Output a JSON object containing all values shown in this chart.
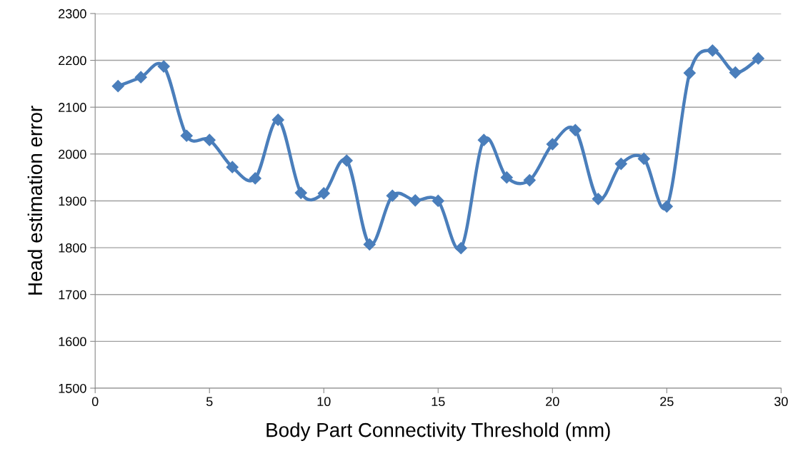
{
  "chart_data": {
    "type": "line",
    "xlabel": "Body Part Connectivity Threshold (mm)",
    "ylabel": "Head estimation error",
    "x": [
      1,
      2,
      3,
      4,
      5,
      6,
      7,
      8,
      9,
      10,
      11,
      12,
      13,
      14,
      15,
      16,
      17,
      18,
      19,
      20,
      21,
      22,
      23,
      24,
      25,
      26,
      27,
      28,
      29
    ],
    "series": [
      {
        "color": "#4a7ebb",
        "values": [
          2145,
          2164,
          2187,
          2039,
          2030,
          1972,
          1948,
          2073,
          1917,
          1916,
          1986,
          1807,
          1911,
          1901,
          1900,
          1799,
          2030,
          1950,
          1944,
          2021,
          2051,
          1904,
          1979,
          1990,
          1888,
          2173,
          2221,
          2174,
          2204
        ]
      }
    ],
    "xlim": [
      0,
      30
    ],
    "xticks": [
      0,
      5,
      10,
      15,
      20,
      25,
      30
    ],
    "ylim": [
      1500,
      2300
    ],
    "yticks": [
      1500,
      1600,
      1700,
      1800,
      1900,
      2000,
      2100,
      2200,
      2300
    ],
    "grid": "y",
    "marker": "diamond",
    "line_style": "solid"
  }
}
